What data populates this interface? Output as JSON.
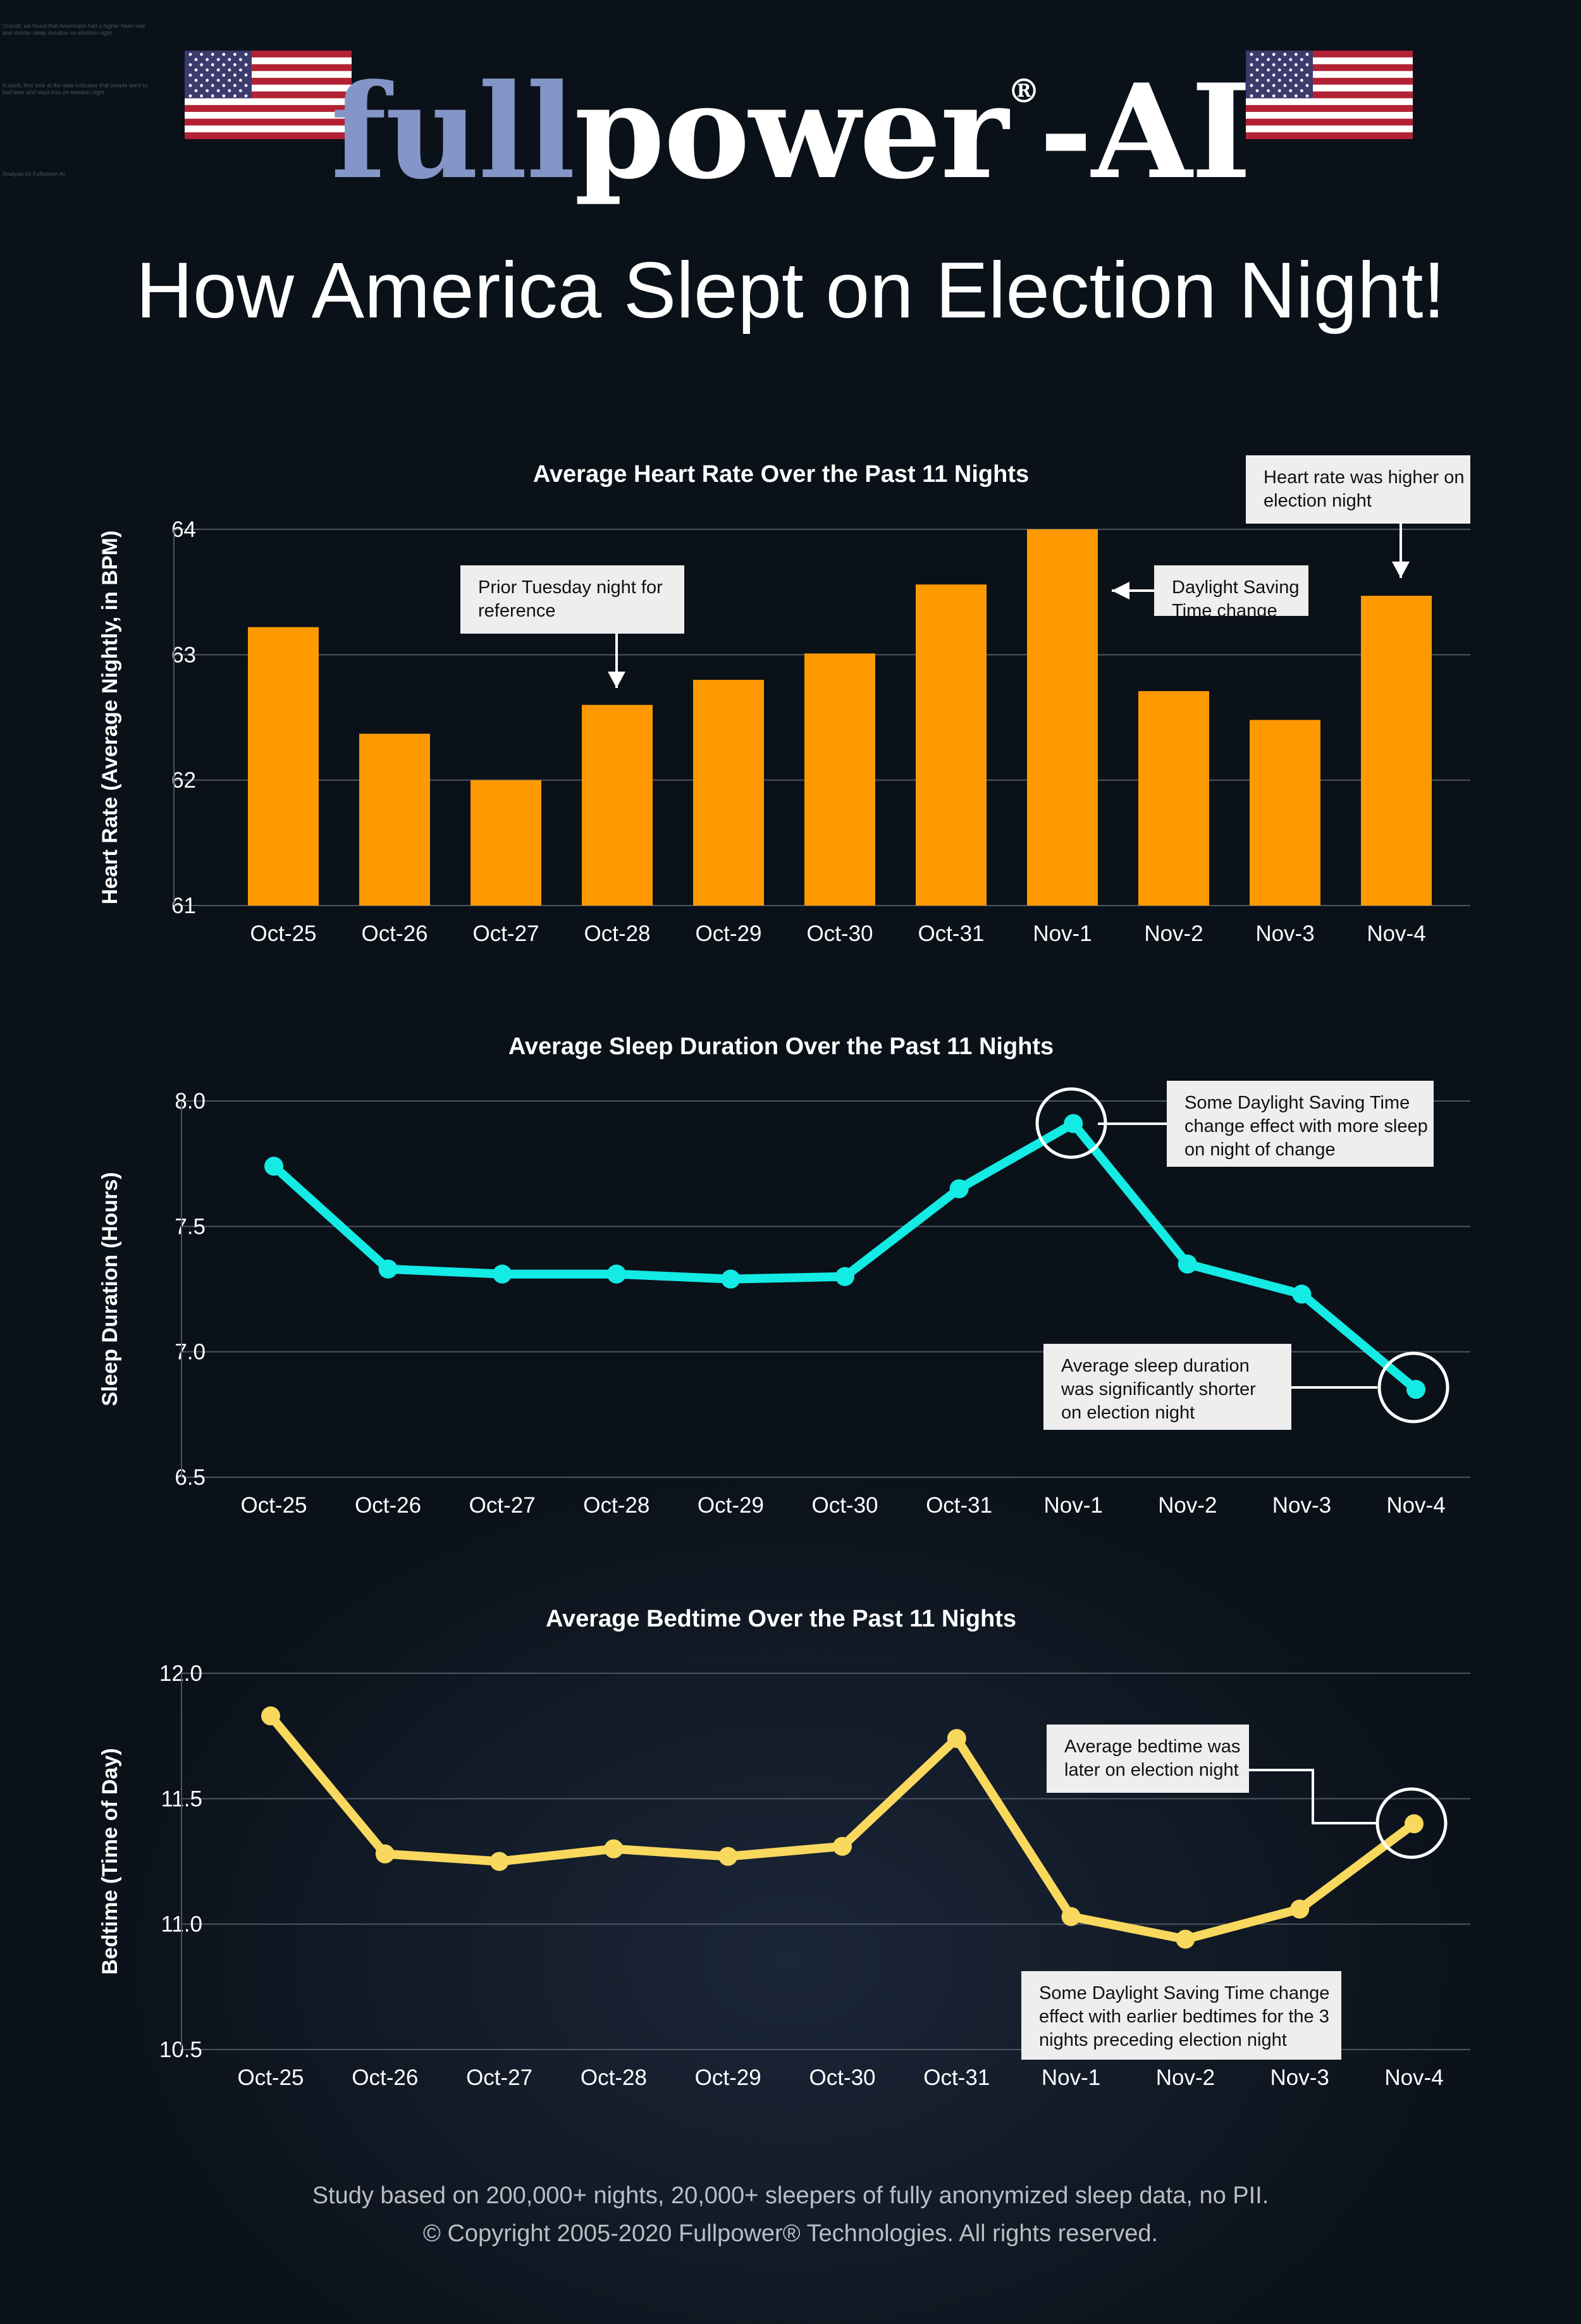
{
  "brand": {
    "part1": "full",
    "part2": "power",
    "reg": "®",
    "part3": "-AI"
  },
  "flags": [
    {
      "icon": "us-flag-icon"
    },
    {
      "icon": "us-flag-icon"
    }
  ],
  "headline": "How America Slept on Election Night!",
  "corner_text": [
    "Overall, we found that Americans had a higher heart rate and shorter sleep duration on election night",
    "A quick, first look at the data indicates that people went to bed later and slept less on election night",
    "Analysis by Fullpower-AI"
  ],
  "colors": {
    "background": "#0b1119",
    "bar": "#ff9900",
    "sleep_line": "#13ebe4",
    "bedtime_line": "#f9d85e",
    "grid": "#4d5562",
    "callout_bg": "#eeeeee",
    "brand_accent": "#8496c8"
  },
  "chart_data": [
    {
      "type": "bar",
      "title": "Average Heart Rate Over the Past 11 Nights",
      "ylabel": "Heart Rate (Average Nightly, in BPM)",
      "xlabel": "",
      "categories": [
        "Oct-25",
        "Oct-26",
        "Oct-27",
        "Oct-28",
        "Oct-29",
        "Oct-30",
        "Oct-31",
        "Nov-1",
        "Nov-2",
        "Nov-3",
        "Nov-4"
      ],
      "values": [
        63.22,
        62.37,
        62.0,
        62.6,
        62.8,
        63.01,
        63.56,
        64.0,
        62.71,
        62.48,
        63.47
      ],
      "ylim": [
        61,
        64
      ],
      "yticks": [
        "61",
        "62",
        "63",
        "64"
      ],
      "grid": true,
      "annotations": [
        {
          "lines": [
            "Prior Tuesday night for",
            "reference"
          ],
          "target": "Oct-28"
        },
        {
          "lines": [
            "Daylight Saving",
            "Time change"
          ],
          "target": "Nov-1"
        },
        {
          "lines": [
            "Heart rate was higher on",
            "election night"
          ],
          "target": "Nov-4"
        }
      ]
    },
    {
      "type": "line",
      "title": "Average Sleep Duration Over the Past 11 Nights",
      "ylabel": "Sleep Duration (Hours)",
      "xlabel": "",
      "categories": [
        "Oct-25",
        "Oct-26",
        "Oct-27",
        "Oct-28",
        "Oct-29",
        "Oct-30",
        "Oct-31",
        "Nov-1",
        "Nov-2",
        "Nov-3",
        "Nov-4"
      ],
      "values": [
        7.74,
        7.33,
        7.31,
        7.31,
        7.29,
        7.3,
        7.65,
        7.91,
        7.35,
        7.23,
        6.85
      ],
      "ylim": [
        6.5,
        8.0
      ],
      "yticks": [
        "6.5",
        "7.0",
        "7.5",
        "8.0"
      ],
      "grid": true,
      "annotations": [
        {
          "lines": [
            "Some Daylight Saving Time",
            "change effect with more sleep",
            "on night of change"
          ],
          "target": "Nov-1"
        },
        {
          "lines": [
            "Average sleep duration",
            "was significantly shorter",
            "on election night"
          ],
          "target": "Nov-4"
        }
      ]
    },
    {
      "type": "line",
      "title": "Average Bedtime Over the Past 11 Nights",
      "ylabel": "Bedtime (Time of Day)",
      "xlabel": "",
      "categories": [
        "Oct-25",
        "Oct-26",
        "Oct-27",
        "Oct-28",
        "Oct-29",
        "Oct-30",
        "Oct-31",
        "Nov-1",
        "Nov-2",
        "Nov-3",
        "Nov-4"
      ],
      "values": [
        11.83,
        11.28,
        11.25,
        11.3,
        11.27,
        11.31,
        11.74,
        11.03,
        10.94,
        11.06,
        11.4
      ],
      "ylim": [
        10.5,
        12.0
      ],
      "yticks": [
        "10.5",
        "11.0",
        "11.5",
        "12.0"
      ],
      "grid": true,
      "annotations": [
        {
          "lines": [
            "Average bedtime was",
            "later on election night"
          ],
          "target": "Nov-4"
        },
        {
          "lines": [
            "Some Daylight Saving Time change",
            "effect with earlier bedtimes for the 3",
            "nights preceding election night"
          ],
          "target": "Nov-2"
        }
      ]
    }
  ],
  "footer": {
    "line1": "Study based on 200,000+ nights, 20,000+ sleepers of fully anonymized sleep data, no PII.",
    "line2": "© Copyright 2005-2020 Fullpower® Technologies. All rights reserved."
  }
}
